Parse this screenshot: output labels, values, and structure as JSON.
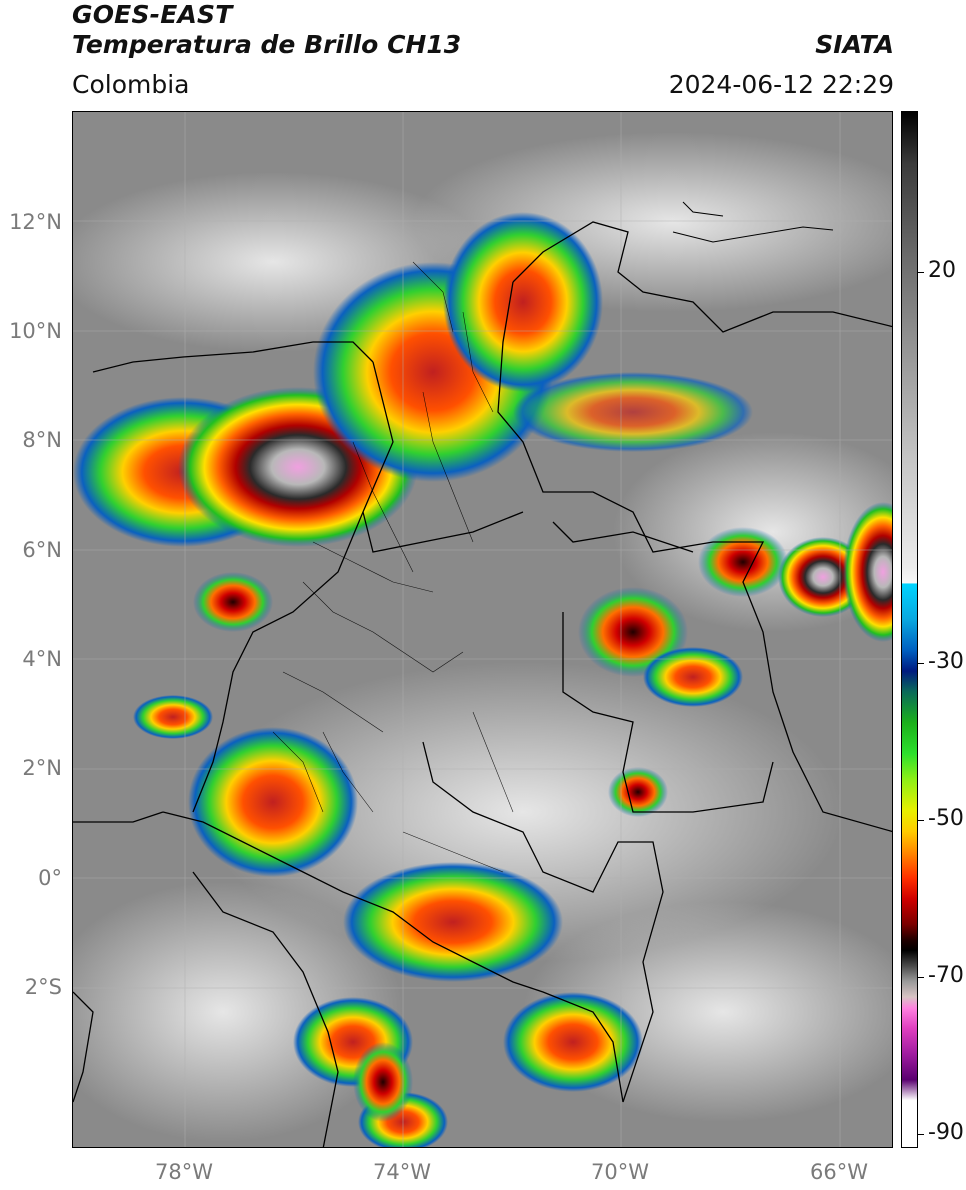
{
  "header": {
    "title": "GOES-EAST",
    "subtitle": "Temperatura de Brillo CH13",
    "region": "Colombia",
    "organization": "SIATA",
    "timestamp": "2024-06-12 22:29"
  },
  "map": {
    "lat_labels": [
      "12°N",
      "10°N",
      "8°N",
      "6°N",
      "4°N",
      "2°N",
      "0°",
      "2°S"
    ],
    "lon_labels": [
      "78°W",
      "74°W",
      "70°W",
      "66°W"
    ]
  },
  "colorbar": {
    "labels": [
      "20",
      "-30",
      "-50",
      "-70",
      "-90"
    ],
    "colors": {
      "warm": "#ffffff",
      "cold_start": "#00d4ff",
      "green": "#2de02d",
      "yellow": "#e8f000",
      "red": "#d00000",
      "black": "#000000",
      "pink": "#ff80e0",
      "purple": "#5a0070"
    }
  }
}
